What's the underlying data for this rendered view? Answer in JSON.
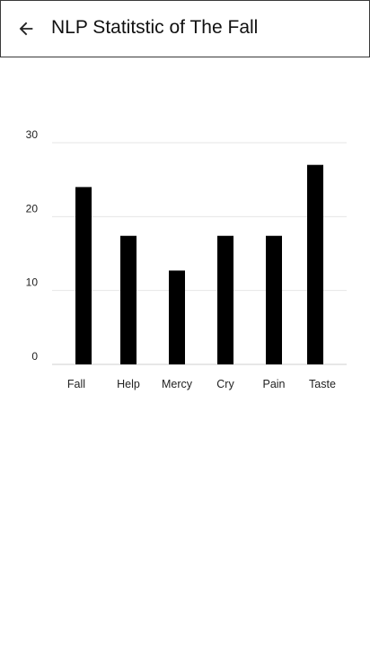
{
  "app_bar": {
    "title": "NLP Statitstic of The Fall",
    "back_icon": "arrow-back-icon"
  },
  "colors": {
    "bar": "#000000",
    "gridline": "#e6e6e6",
    "axis": "#cfcfcf",
    "text": "#222222"
  },
  "chart_data": {
    "type": "bar",
    "categories": [
      "Fall",
      "Help",
      "Mercy",
      "Cry",
      "Pain",
      "Taste"
    ],
    "values": [
      24,
      17.4,
      12.7,
      17.4,
      17.4,
      27
    ],
    "ylim": [
      0,
      30
    ],
    "yticks": [
      0,
      10,
      20,
      30
    ],
    "grid": true,
    "legend": "none",
    "title": "",
    "xlabel": "",
    "ylabel": ""
  }
}
